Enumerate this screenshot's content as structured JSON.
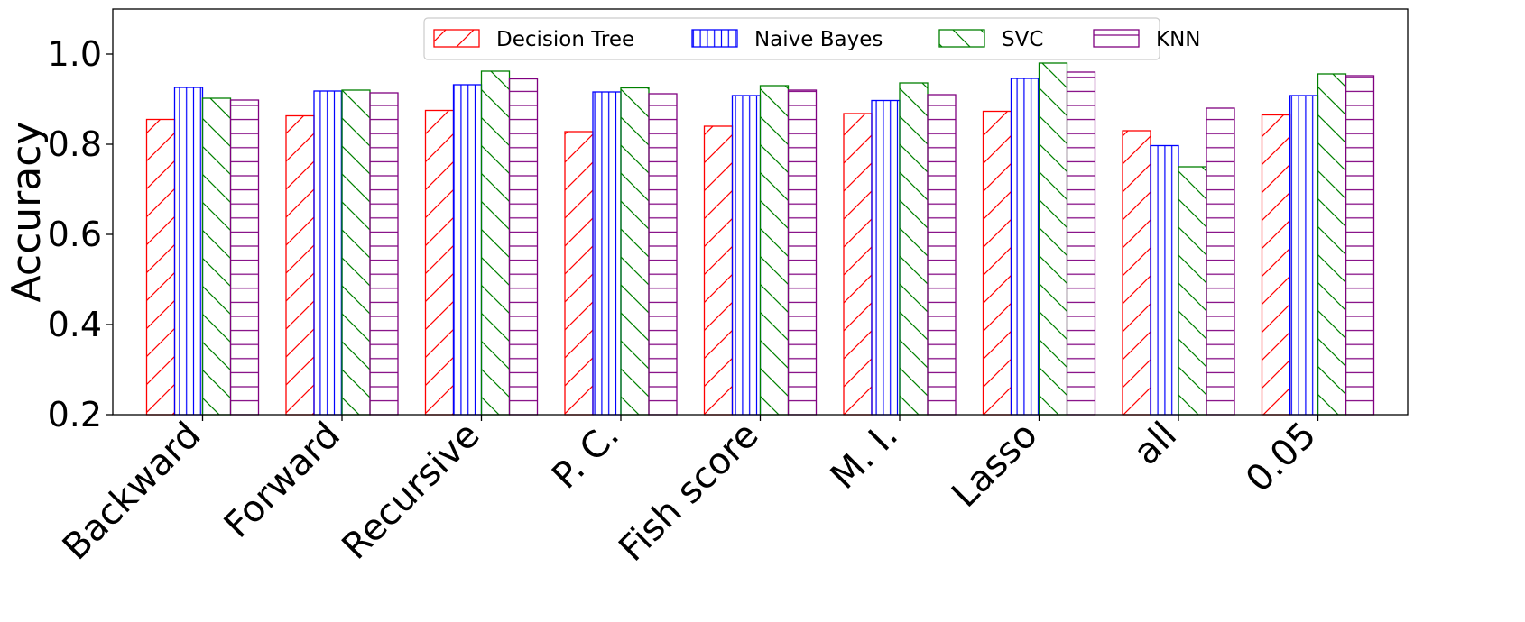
{
  "chart_data": {
    "type": "bar",
    "ylabel": "Accuracy",
    "xlabel": "",
    "ylim": [
      0.2,
      1.1
    ],
    "yticks": [
      0.2,
      0.4,
      0.6,
      0.8,
      1.0
    ],
    "ytick_labels": [
      "0.2",
      "0.4",
      "0.6",
      "0.8",
      "1.0"
    ],
    "grid": false,
    "legend_position": "top-center",
    "categories": [
      "Backward",
      "Forward",
      "Recursive",
      "P. C.",
      "Fish score",
      "M. I.",
      "Lasso",
      "all",
      "0.05"
    ],
    "series": [
      {
        "name": "Decision Tree",
        "color": "#ff0000",
        "hatch": "diagonal-up",
        "values": [
          0.855,
          0.863,
          0.875,
          0.828,
          0.84,
          0.868,
          0.873,
          0.83,
          0.865
        ]
      },
      {
        "name": "Naive Bayes",
        "color": "#0000ff",
        "hatch": "vertical",
        "values": [
          0.926,
          0.918,
          0.932,
          0.916,
          0.908,
          0.897,
          0.946,
          0.797,
          0.908
        ]
      },
      {
        "name": "SVC",
        "color": "#008000",
        "hatch": "diagonal-down",
        "values": [
          0.902,
          0.92,
          0.962,
          0.925,
          0.93,
          0.936,
          0.98,
          0.75,
          0.956
        ]
      },
      {
        "name": "KNN",
        "color": "#800080",
        "hatch": "horizontal",
        "values": [
          0.898,
          0.914,
          0.945,
          0.912,
          0.92,
          0.91,
          0.96,
          0.88,
          0.952
        ]
      }
    ]
  }
}
